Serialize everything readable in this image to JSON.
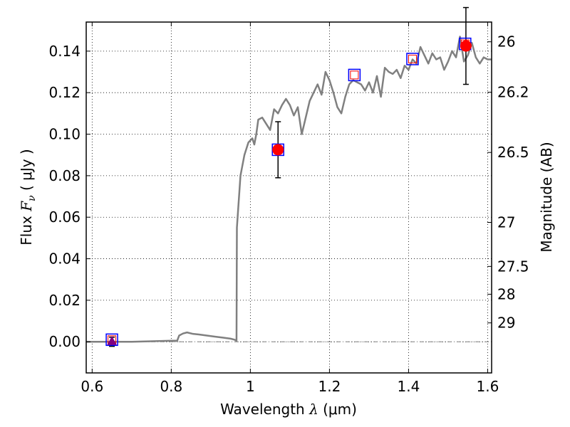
{
  "chart_data": {
    "type": "line",
    "xlabel": {
      "prefix": "Wavelength ",
      "symbol": "λ",
      "suffix": " (μm)"
    },
    "ylabel": {
      "prefix": "Flux ",
      "symbol": "F",
      "subscript": "ν",
      "suffix": " ( μJy )"
    },
    "ylabel_right": "Magnitude (AB)",
    "xlim": [
      0.585,
      1.61
    ],
    "ylim": [
      -0.015,
      0.154
    ],
    "x_ticks": [
      0.6,
      0.8,
      1.0,
      1.2,
      1.4,
      1.6
    ],
    "x_tick_labels": [
      "0.6",
      "0.8",
      "1",
      "1.2",
      "1.4",
      "1.6"
    ],
    "y_ticks": [
      0.0,
      0.02,
      0.04,
      0.06,
      0.08,
      0.1,
      0.12,
      0.14
    ],
    "y_tick_labels": [
      "0.00",
      "0.02",
      "0.04",
      "0.06",
      "0.08",
      "0.10",
      "0.12",
      "0.14"
    ],
    "right_ticks": [
      {
        "label": "26",
        "flux": 0.1445
      },
      {
        "label": "26.2",
        "flux": 0.1202
      },
      {
        "label": "26.5",
        "flux": 0.0912
      },
      {
        "label": "27",
        "flux": 0.0575
      },
      {
        "label": "27.5",
        "flux": 0.0363
      },
      {
        "label": "28",
        "flux": 0.0229
      },
      {
        "label": "29",
        "flux": 0.0091
      }
    ],
    "grid": true,
    "colors": {
      "model": "#808080",
      "measured": "#ff0000",
      "model_band": "#0000ff",
      "upper_limit": "#800080",
      "errorbar": "#000000",
      "zero_line": "#808080"
    },
    "series": [
      {
        "type": "line",
        "points": [
          [
            0.585,
            0.0
          ],
          [
            0.7,
            0.0
          ],
          [
            0.76,
            0.0003
          ],
          [
            0.8,
            0.0005
          ],
          [
            0.815,
            0.0005
          ],
          [
            0.82,
            0.003
          ],
          [
            0.83,
            0.004
          ],
          [
            0.84,
            0.0045
          ],
          [
            0.855,
            0.0038
          ],
          [
            0.87,
            0.0035
          ],
          [
            0.89,
            0.003
          ],
          [
            0.91,
            0.0025
          ],
          [
            0.93,
            0.002
          ],
          [
            0.95,
            0.0015
          ],
          [
            0.96,
            0.001
          ],
          [
            0.965,
            0.0005
          ],
          [
            0.966,
            0.055
          ],
          [
            0.975,
            0.08
          ],
          [
            0.985,
            0.09
          ],
          [
            0.995,
            0.096
          ],
          [
            1.005,
            0.098
          ],
          [
            1.01,
            0.095
          ],
          [
            1.015,
            0.1
          ],
          [
            1.02,
            0.107
          ],
          [
            1.03,
            0.108
          ],
          [
            1.04,
            0.105
          ],
          [
            1.05,
            0.102
          ],
          [
            1.06,
            0.112
          ],
          [
            1.07,
            0.11
          ],
          [
            1.08,
            0.114
          ],
          [
            1.09,
            0.117
          ],
          [
            1.1,
            0.114
          ],
          [
            1.11,
            0.109
          ],
          [
            1.12,
            0.113
          ],
          [
            1.13,
            0.1
          ],
          [
            1.14,
            0.108
          ],
          [
            1.15,
            0.116
          ],
          [
            1.16,
            0.12
          ],
          [
            1.17,
            0.124
          ],
          [
            1.18,
            0.119
          ],
          [
            1.19,
            0.13
          ],
          [
            1.2,
            0.126
          ],
          [
            1.21,
            0.12
          ],
          [
            1.22,
            0.113
          ],
          [
            1.23,
            0.11
          ],
          [
            1.24,
            0.118
          ],
          [
            1.25,
            0.124
          ],
          [
            1.26,
            0.126
          ],
          [
            1.27,
            0.125
          ],
          [
            1.28,
            0.124
          ],
          [
            1.29,
            0.121
          ],
          [
            1.3,
            0.125
          ],
          [
            1.31,
            0.12
          ],
          [
            1.32,
            0.128
          ],
          [
            1.33,
            0.118
          ],
          [
            1.34,
            0.132
          ],
          [
            1.35,
            0.13
          ],
          [
            1.36,
            0.129
          ],
          [
            1.37,
            0.131
          ],
          [
            1.38,
            0.127
          ],
          [
            1.39,
            0.133
          ],
          [
            1.4,
            0.131
          ],
          [
            1.41,
            0.136
          ],
          [
            1.42,
            0.134
          ],
          [
            1.43,
            0.142
          ],
          [
            1.44,
            0.138
          ],
          [
            1.45,
            0.134
          ],
          [
            1.46,
            0.139
          ],
          [
            1.47,
            0.136
          ],
          [
            1.48,
            0.137
          ],
          [
            1.49,
            0.131
          ],
          [
            1.5,
            0.135
          ],
          [
            1.51,
            0.14
          ],
          [
            1.52,
            0.137
          ],
          [
            1.53,
            0.147
          ],
          [
            1.54,
            0.135
          ],
          [
            1.55,
            0.138
          ],
          [
            1.56,
            0.144
          ],
          [
            1.57,
            0.137
          ],
          [
            1.58,
            0.134
          ],
          [
            1.59,
            0.137
          ],
          [
            1.6,
            0.136
          ],
          [
            1.61,
            0.136
          ]
        ]
      },
      {
        "type": "scatter",
        "marker": "circle",
        "points": [
          {
            "x": 1.07,
            "y": 0.0925,
            "err": 0.0135
          },
          {
            "x": 1.545,
            "y": 0.1425,
            "err": 0.0185
          }
        ]
      },
      {
        "type": "scatter",
        "marker": "square",
        "points": [
          {
            "x": 0.65,
            "y": 0.001
          },
          {
            "x": 1.07,
            "y": 0.0925
          },
          {
            "x": 1.263,
            "y": 0.1285
          },
          {
            "x": 1.41,
            "y": 0.1362
          },
          {
            "x": 1.543,
            "y": 0.1435
          }
        ]
      },
      {
        "type": "scatter",
        "marker": "triangle",
        "points": [
          {
            "x": 0.65,
            "y": 0.0,
            "err": 0.0022
          }
        ]
      }
    ]
  }
}
